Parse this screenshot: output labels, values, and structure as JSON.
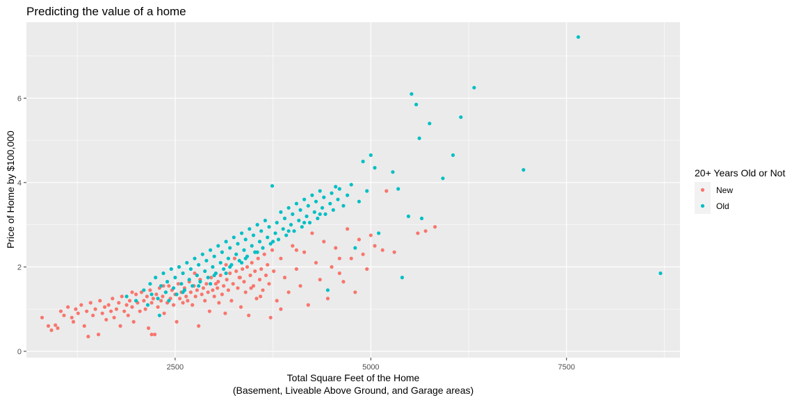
{
  "chart_data": {
    "type": "scatter",
    "title": "Predicting the value of a home",
    "xlabel": "Total Square Feet of the Home",
    "xlabel_line2": "(Basement, Liveable Above Ground, and Garage areas)",
    "ylabel": "Price of Home by $100,000",
    "xlim": [
      600,
      8950
    ],
    "ylim": [
      -0.15,
      7.8
    ],
    "x_ticks": [
      2500,
      5000,
      7500
    ],
    "x_tick_labels": [
      "2500",
      "5000",
      "7500"
    ],
    "y_ticks": [
      0,
      2,
      4,
      6
    ],
    "y_tick_labels": [
      "0",
      "2",
      "4",
      "6"
    ],
    "grid": true,
    "legend": {
      "title": "20+ Years Old or Not",
      "position": "right"
    },
    "colors": {
      "New": "#F8766D",
      "Old": "#00BFC4",
      "panel": "#EBEBEB",
      "grid": "#FFFFFF"
    },
    "series": [
      {
        "name": "New",
        "color": "#F8766D",
        "points": [
          [
            800,
            0.8
          ],
          [
            880,
            0.6
          ],
          [
            920,
            0.5
          ],
          [
            970,
            0.62
          ],
          [
            1000,
            0.55
          ],
          [
            1040,
            0.95
          ],
          [
            1080,
            0.85
          ],
          [
            1130,
            1.05
          ],
          [
            1180,
            0.8
          ],
          [
            1200,
            0.7
          ],
          [
            1230,
            1.0
          ],
          [
            1260,
            0.9
          ],
          [
            1300,
            1.1
          ],
          [
            1340,
            0.6
          ],
          [
            1370,
            0.95
          ],
          [
            1390,
            0.35
          ],
          [
            1420,
            1.15
          ],
          [
            1450,
            0.85
          ],
          [
            1480,
            1.0
          ],
          [
            1520,
            0.4
          ],
          [
            1540,
            1.2
          ],
          [
            1570,
            0.9
          ],
          [
            1600,
            1.05
          ],
          [
            1620,
            0.75
          ],
          [
            1650,
            1.1
          ],
          [
            1680,
            0.95
          ],
          [
            1700,
            1.25
          ],
          [
            1720,
            0.8
          ],
          [
            1750,
            1.0
          ],
          [
            1780,
            1.15
          ],
          [
            1800,
            0.6
          ],
          [
            1820,
            1.3
          ],
          [
            1850,
            0.95
          ],
          [
            1880,
            1.1
          ],
          [
            1900,
            0.85
          ],
          [
            1920,
            1.2
          ],
          [
            1950,
            1.05
          ],
          [
            1970,
            0.7
          ],
          [
            2000,
            1.35
          ],
          [
            2020,
            1.15
          ],
          [
            2050,
            0.95
          ],
          [
            2070,
            1.4
          ],
          [
            2100,
            1.2
          ],
          [
            2120,
            1.0
          ],
          [
            2140,
            1.3
          ],
          [
            2160,
            0.55
          ],
          [
            2180,
            1.45
          ],
          [
            2200,
            1.15
          ],
          [
            2220,
            1.25
          ],
          [
            2240,
            0.4
          ],
          [
            2260,
            1.35
          ],
          [
            2280,
            1.05
          ],
          [
            2300,
            1.5
          ],
          [
            2320,
            1.2
          ],
          [
            2340,
            1.3
          ],
          [
            2360,
            0.9
          ],
          [
            2380,
            1.4
          ],
          [
            2400,
            1.15
          ],
          [
            2420,
            1.55
          ],
          [
            2440,
            1.25
          ],
          [
            2460,
            1.45
          ],
          [
            2480,
            1.1
          ],
          [
            2500,
            1.35
          ],
          [
            2520,
            0.7
          ],
          [
            2540,
            1.6
          ],
          [
            2560,
            1.25
          ],
          [
            2580,
            1.4
          ],
          [
            2600,
            1.15
          ],
          [
            2620,
            1.5
          ],
          [
            2640,
            1.3
          ],
          [
            2660,
            1.2
          ],
          [
            2680,
            1.65
          ],
          [
            2700,
            1.4
          ],
          [
            2720,
            1.1
          ],
          [
            2740,
            1.55
          ],
          [
            2760,
            1.3
          ],
          [
            2780,
            1.45
          ],
          [
            2800,
            0.6
          ],
          [
            2820,
            1.7
          ],
          [
            2840,
            1.35
          ],
          [
            2860,
            1.5
          ],
          [
            2880,
            1.2
          ],
          [
            2900,
            1.6
          ],
          [
            2920,
            1.4
          ],
          [
            2940,
            0.95
          ],
          [
            2960,
            1.75
          ],
          [
            2980,
            1.45
          ],
          [
            3000,
            1.3
          ],
          [
            3020,
            1.6
          ],
          [
            3040,
            1.5
          ],
          [
            3060,
            1.15
          ],
          [
            3080,
            1.8
          ],
          [
            3100,
            1.35
          ],
          [
            3120,
            1.55
          ],
          [
            3140,
            0.9
          ],
          [
            3160,
            1.7
          ],
          [
            3180,
            1.45
          ],
          [
            3200,
            1.85
          ],
          [
            3220,
            1.2
          ],
          [
            3240,
            1.6
          ],
          [
            3260,
            2.2
          ],
          [
            3280,
            1.9
          ],
          [
            3300,
            1.5
          ],
          [
            3320,
            1.75
          ],
          [
            3340,
            1.05
          ],
          [
            3360,
            1.95
          ],
          [
            3380,
            1.65
          ],
          [
            3400,
            1.4
          ],
          [
            3420,
            2.0
          ],
          [
            3440,
            0.85
          ],
          [
            3460,
            1.8
          ],
          [
            3480,
            2.1
          ],
          [
            3500,
            1.55
          ],
          [
            3520,
            1.9
          ],
          [
            3540,
            1.25
          ],
          [
            3560,
            2.2
          ],
          [
            3580,
            1.7
          ],
          [
            3600,
            1.95
          ],
          [
            3620,
            1.45
          ],
          [
            3640,
            2.3
          ],
          [
            3660,
            1.8
          ],
          [
            3680,
            2.05
          ],
          [
            3700,
            1.6
          ],
          [
            3720,
            0.8
          ],
          [
            3740,
            2.4
          ],
          [
            3760,
            1.9
          ],
          [
            3800,
            1.2
          ],
          [
            3850,
            2.2
          ],
          [
            3900,
            1.75
          ],
          [
            3950,
            1.4
          ],
          [
            4000,
            2.5
          ],
          [
            4050,
            1.95
          ],
          [
            4100,
            1.55
          ],
          [
            4150,
            2.35
          ],
          [
            4200,
            1.1
          ],
          [
            4250,
            2.8
          ],
          [
            4300,
            2.1
          ],
          [
            4350,
            1.7
          ],
          [
            4400,
            2.6
          ],
          [
            4450,
            1.25
          ],
          [
            4500,
            2.0
          ],
          [
            4550,
            2.45
          ],
          [
            4600,
            1.85
          ],
          [
            4650,
            1.65
          ],
          [
            4700,
            2.9
          ],
          [
            4750,
            2.2
          ],
          [
            4800,
            1.4
          ],
          [
            4850,
            2.65
          ],
          [
            4900,
            2.3
          ],
          [
            4950,
            1.95
          ],
          [
            5000,
            2.75
          ],
          [
            5050,
            2.5
          ],
          [
            5150,
            2.4
          ],
          [
            5200,
            3.8
          ],
          [
            5300,
            2.35
          ],
          [
            5600,
            2.8
          ],
          [
            5700,
            2.85
          ],
          [
            5820,
            2.95
          ],
          [
            2200,
            0.4
          ],
          [
            1950,
            1.4
          ],
          [
            2350,
            1.55
          ],
          [
            2750,
            1.85
          ],
          [
            3050,
            1.65
          ],
          [
            3150,
            2.05
          ],
          [
            3330,
            1.75
          ],
          [
            3470,
            1.5
          ],
          [
            3590,
            1.3
          ],
          [
            3850,
            1.0
          ],
          [
            4050,
            2.4
          ],
          [
            4600,
            2.2
          ]
        ]
      },
      {
        "name": "Old",
        "color": "#00BFC4",
        "points": [
          [
            1880,
            1.3
          ],
          [
            2000,
            1.2
          ],
          [
            2100,
            1.45
          ],
          [
            2150,
            1.1
          ],
          [
            2180,
            1.6
          ],
          [
            2200,
            1.35
          ],
          [
            2250,
            1.75
          ],
          [
            2280,
            1.25
          ],
          [
            2300,
            0.85
          ],
          [
            2320,
            1.55
          ],
          [
            2350,
            1.85
          ],
          [
            2380,
            1.4
          ],
          [
            2400,
            1.65
          ],
          [
            2420,
            1.2
          ],
          [
            2450,
            1.95
          ],
          [
            2480,
            1.5
          ],
          [
            2500,
            1.75
          ],
          [
            2520,
            1.35
          ],
          [
            2550,
            2.0
          ],
          [
            2580,
            1.6
          ],
          [
            2600,
            1.85
          ],
          [
            2620,
            1.45
          ],
          [
            2650,
            2.1
          ],
          [
            2680,
            1.7
          ],
          [
            2700,
            1.95
          ],
          [
            2720,
            1.55
          ],
          [
            2750,
            2.2
          ],
          [
            2780,
            1.8
          ],
          [
            2800,
            2.05
          ],
          [
            2820,
            1.65
          ],
          [
            2850,
            2.3
          ],
          [
            2880,
            1.9
          ],
          [
            2900,
            2.15
          ],
          [
            2920,
            1.75
          ],
          [
            2950,
            2.4
          ],
          [
            2980,
            2.0
          ],
          [
            3000,
            2.25
          ],
          [
            3020,
            1.85
          ],
          [
            3050,
            2.5
          ],
          [
            3080,
            2.1
          ],
          [
            3100,
            2.35
          ],
          [
            3120,
            1.95
          ],
          [
            3150,
            2.6
          ],
          [
            3180,
            2.2
          ],
          [
            3200,
            2.45
          ],
          [
            3220,
            2.05
          ],
          [
            3250,
            2.7
          ],
          [
            3280,
            2.3
          ],
          [
            3300,
            2.55
          ],
          [
            3320,
            2.15
          ],
          [
            3350,
            2.8
          ],
          [
            3380,
            2.4
          ],
          [
            3400,
            2.65
          ],
          [
            3420,
            2.25
          ],
          [
            3450,
            2.9
          ],
          [
            3480,
            2.5
          ],
          [
            3500,
            2.75
          ],
          [
            3520,
            2.35
          ],
          [
            3550,
            3.0
          ],
          [
            3580,
            2.6
          ],
          [
            3600,
            2.85
          ],
          [
            3620,
            2.45
          ],
          [
            3650,
            3.1
          ],
          [
            3680,
            2.7
          ],
          [
            3700,
            2.95
          ],
          [
            3720,
            2.55
          ],
          [
            3740,
            3.92
          ],
          [
            3780,
            2.8
          ],
          [
            3800,
            3.05
          ],
          [
            3820,
            2.65
          ],
          [
            3850,
            3.3
          ],
          [
            3880,
            2.9
          ],
          [
            3900,
            3.15
          ],
          [
            3920,
            2.75
          ],
          [
            3950,
            3.4
          ],
          [
            3980,
            3.0
          ],
          [
            4000,
            3.25
          ],
          [
            4020,
            2.85
          ],
          [
            4050,
            3.5
          ],
          [
            4080,
            3.1
          ],
          [
            4100,
            3.35
          ],
          [
            4120,
            2.95
          ],
          [
            4150,
            3.6
          ],
          [
            4180,
            3.2
          ],
          [
            4200,
            3.45
          ],
          [
            4220,
            3.05
          ],
          [
            4250,
            3.7
          ],
          [
            4280,
            3.3
          ],
          [
            4300,
            3.55
          ],
          [
            4320,
            3.15
          ],
          [
            4350,
            3.8
          ],
          [
            4380,
            3.4
          ],
          [
            4400,
            3.65
          ],
          [
            4420,
            3.25
          ],
          [
            4450,
            1.45
          ],
          [
            4480,
            3.5
          ],
          [
            4500,
            3.75
          ],
          [
            4520,
            3.35
          ],
          [
            4550,
            3.9
          ],
          [
            4580,
            3.6
          ],
          [
            4600,
            3.85
          ],
          [
            4650,
            3.45
          ],
          [
            4700,
            3.7
          ],
          [
            4750,
            3.95
          ],
          [
            4800,
            2.45
          ],
          [
            4850,
            3.55
          ],
          [
            4900,
            4.5
          ],
          [
            4950,
            3.8
          ],
          [
            5000,
            4.65
          ],
          [
            5050,
            4.35
          ],
          [
            5100,
            2.8
          ],
          [
            5280,
            4.25
          ],
          [
            5350,
            3.85
          ],
          [
            5400,
            1.75
          ],
          [
            5480,
            3.2
          ],
          [
            5520,
            6.1
          ],
          [
            5580,
            5.85
          ],
          [
            5620,
            5.05
          ],
          [
            5650,
            3.15
          ],
          [
            5750,
            5.4
          ],
          [
            5920,
            4.1
          ],
          [
            6050,
            4.65
          ],
          [
            6150,
            5.55
          ],
          [
            6320,
            6.25
          ],
          [
            6950,
            4.3
          ],
          [
            7650,
            7.45
          ],
          [
            8700,
            1.85
          ],
          [
            2950,
            1.6
          ],
          [
            3150,
            1.85
          ],
          [
            3350,
            2.1
          ],
          [
            3550,
            2.35
          ],
          [
            3750,
            2.6
          ],
          [
            3950,
            2.85
          ],
          [
            4150,
            3.05
          ],
          [
            4350,
            3.25
          ],
          [
            2600,
            1.4
          ],
          [
            2800,
            1.55
          ],
          [
            3000,
            1.8
          ],
          [
            3200,
            2.0
          ],
          [
            3400,
            2.2
          ]
        ]
      }
    ]
  }
}
